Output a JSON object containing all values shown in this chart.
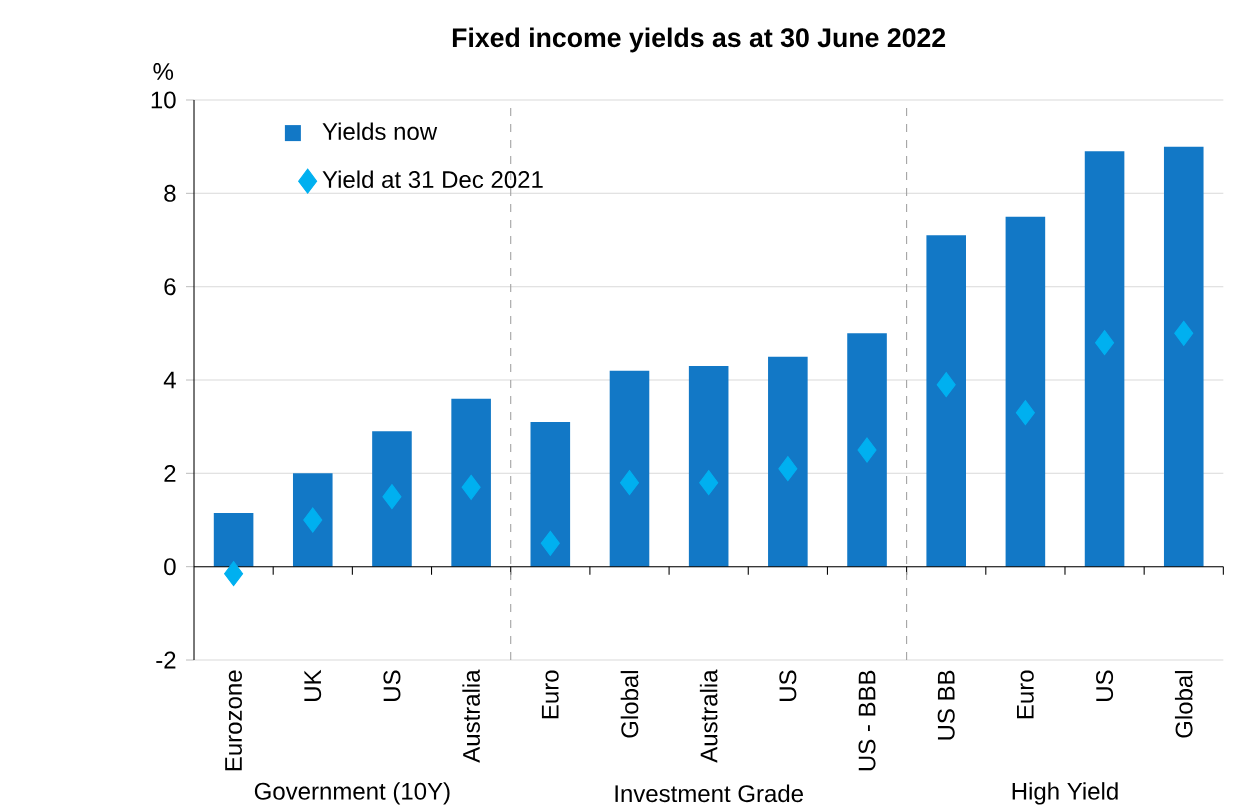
{
  "chart_data": {
    "type": "bar",
    "title": "Fixed income yields as at 30 June 2022",
    "ylabel": "%",
    "categories": [
      "Eurozone",
      "UK",
      "US",
      "Australia",
      "Euro",
      "Global",
      "Australia",
      "US",
      "US - BBB",
      "US BB",
      "Euro",
      "US",
      "Global"
    ],
    "series": [
      {
        "name": "Yields now",
        "color": "#1278c6",
        "values": [
          1.15,
          2.0,
          2.9,
          3.6,
          3.1,
          4.2,
          4.3,
          4.5,
          5.0,
          7.1,
          7.5,
          8.9,
          9.0
        ]
      },
      {
        "name": "Yield at 31 Dec 2021",
        "type": "scatter",
        "marker": "diamond",
        "color": "#00b0f0",
        "values": [
          -0.15,
          1.0,
          1.5,
          1.7,
          0.5,
          1.8,
          1.8,
          2.1,
          2.5,
          3.9,
          3.3,
          4.8,
          5.0
        ]
      }
    ],
    "ylim": [
      -2,
      10
    ],
    "yticks": [
      -2,
      0,
      2,
      4,
      6,
      8,
      10
    ],
    "grid": "y",
    "legend": "top left",
    "annotations": [
      "Government (10Y)",
      "Investment Grade",
      "High Yield"
    ]
  }
}
